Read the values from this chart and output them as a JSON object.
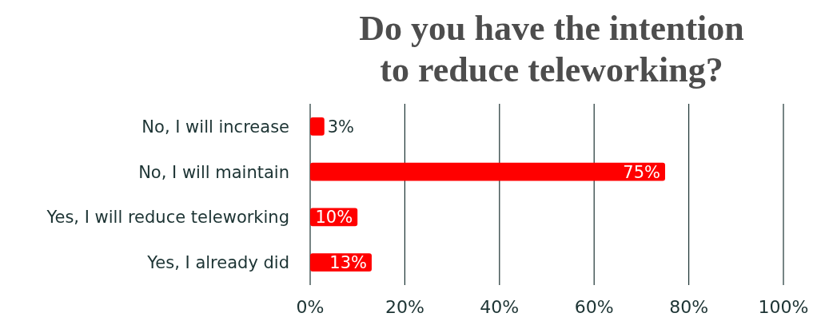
{
  "chart_data": {
    "type": "bar",
    "orientation": "horizontal",
    "title": "Do you have the intention\nto reduce teleworking?",
    "categories": [
      "No, I will increase",
      "No, I will maintain",
      "Yes, I will reduce teleworking",
      "Yes, I already did"
    ],
    "values": [
      3,
      75,
      10,
      13
    ],
    "value_labels": [
      "3%",
      "75%",
      "10%",
      "13%"
    ],
    "color": "#ff0000",
    "xlim": [
      0,
      100
    ],
    "xticks": [
      {
        "value": 0,
        "label": "0%"
      },
      {
        "value": 20,
        "label": "20%"
      },
      {
        "value": 40,
        "label": "40%"
      },
      {
        "value": 60,
        "label": "60%"
      },
      {
        "value": 80,
        "label": "80%"
      },
      {
        "value": 100,
        "label": "100%"
      }
    ],
    "grid": "x"
  }
}
